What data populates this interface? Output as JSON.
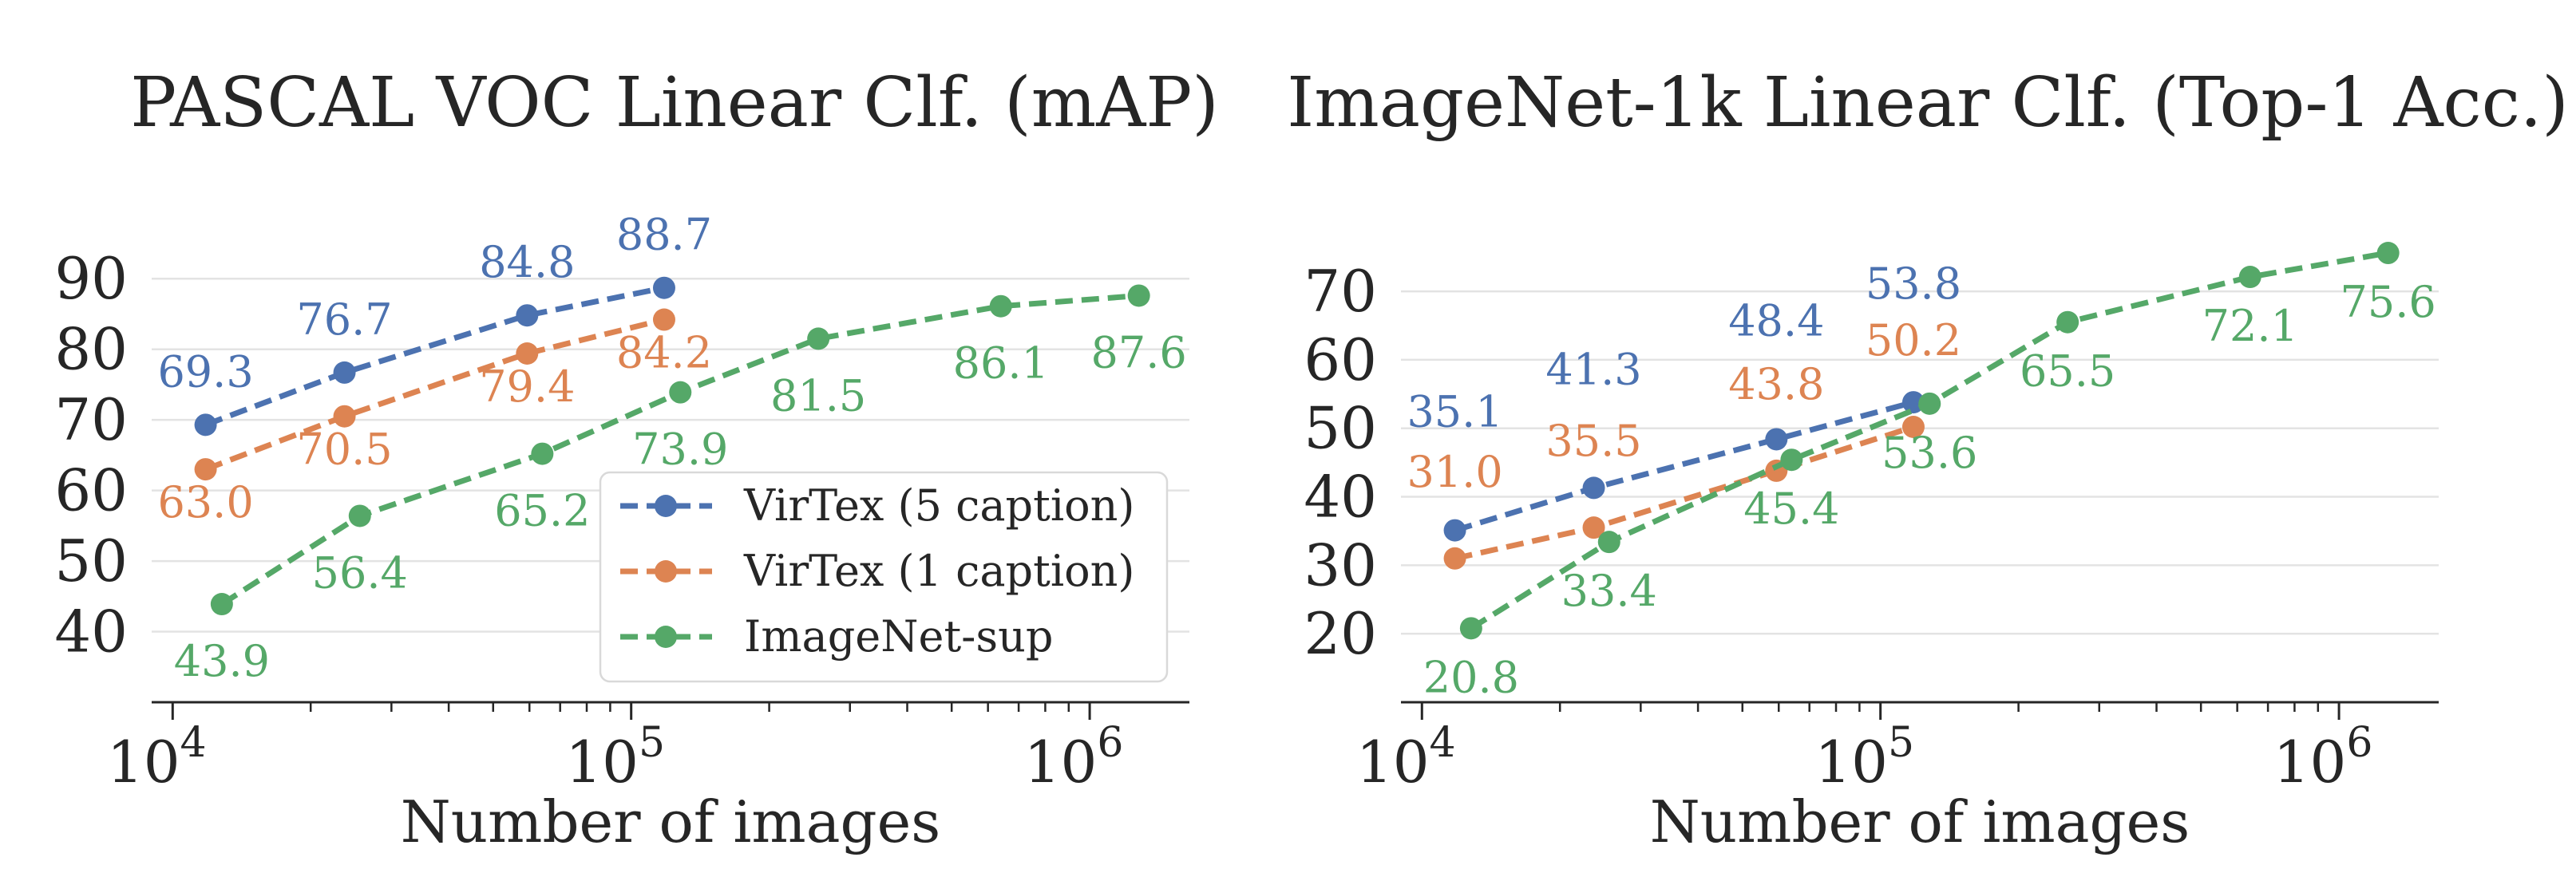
{
  "chart_data": [
    {
      "type": "line",
      "title": "PASCAL VOC Linear Clf. (mAP)",
      "xlabel": "Number of images",
      "ylabel": "",
      "xscale": "log",
      "xticks": [
        10000,
        100000,
        1000000
      ],
      "xticklabels": [
        {
          "base": "10",
          "exp": "4"
        },
        {
          "base": "10",
          "exp": "5"
        },
        {
          "base": "10",
          "exp": "6"
        }
      ],
      "yticks": [
        40,
        50,
        60,
        70,
        80,
        90
      ],
      "xlim": [
        9000,
        1650000
      ],
      "ylim": [
        30,
        95
      ],
      "grid": "horizontal",
      "legend": "lower-right",
      "series": [
        {
          "name": "VirTex (5 caption)",
          "color": "#4c72b0",
          "x": [
            11800,
            23700,
            59300,
            118000
          ],
          "y": [
            69.3,
            76.7,
            84.8,
            88.7
          ],
          "labels": [
            "69.3",
            "76.7",
            "84.8",
            "88.7"
          ]
        },
        {
          "name": "VirTex (1 caption)",
          "color": "#dd8452",
          "x": [
            11800,
            23700,
            59300,
            118000
          ],
          "y": [
            63.0,
            70.5,
            79.4,
            84.2
          ],
          "labels": [
            "63.0",
            "70.5",
            "79.4",
            "84.2"
          ]
        },
        {
          "name": "ImageNet-sup",
          "color": "#55a868",
          "x": [
            12800,
            25600,
            64000,
            128000,
            256000,
            640000,
            1280000
          ],
          "y": [
            43.9,
            56.4,
            65.2,
            73.9,
            81.5,
            86.1,
            87.6
          ],
          "labels": [
            "43.9",
            "56.4",
            "65.2",
            "73.9",
            "81.5",
            "86.1",
            "87.6"
          ]
        }
      ]
    },
    {
      "type": "line",
      "title": "ImageNet-1k Linear Clf. (Top-1 Acc.)",
      "xlabel": "Number of images",
      "ylabel": "",
      "xscale": "log",
      "xticks": [
        10000,
        100000,
        1000000
      ],
      "xticklabels": [
        {
          "base": "10",
          "exp": "4"
        },
        {
          "base": "10",
          "exp": "5"
        },
        {
          "base": "10",
          "exp": "6"
        }
      ],
      "yticks": [
        20,
        30,
        40,
        50,
        60,
        70
      ],
      "xlim": [
        9000,
        1650000
      ],
      "ylim": [
        10,
        77
      ],
      "grid": "horizontal",
      "series": [
        {
          "name": "VirTex (5 caption)",
          "color": "#4c72b0",
          "x": [
            11800,
            23700,
            59300,
            118000
          ],
          "y": [
            35.1,
            41.3,
            48.4,
            53.8
          ],
          "labels": [
            "35.1",
            "41.3",
            "48.4",
            "53.8"
          ]
        },
        {
          "name": "VirTex (1 caption)",
          "color": "#dd8452",
          "x": [
            11800,
            23700,
            59300,
            118000
          ],
          "y": [
            31.0,
            35.5,
            43.8,
            50.2
          ],
          "labels": [
            "31.0",
            "35.5",
            "43.8",
            "50.2"
          ]
        },
        {
          "name": "ImageNet-sup",
          "color": "#55a868",
          "x": [
            12800,
            25600,
            64000,
            128000,
            256000,
            640000,
            1280000
          ],
          "y": [
            20.8,
            33.4,
            45.4,
            53.6,
            65.5,
            72.1,
            75.6
          ],
          "labels": [
            "20.8",
            "33.4",
            "45.4",
            "53.6",
            "65.5",
            "72.1",
            "75.6"
          ]
        }
      ]
    }
  ]
}
